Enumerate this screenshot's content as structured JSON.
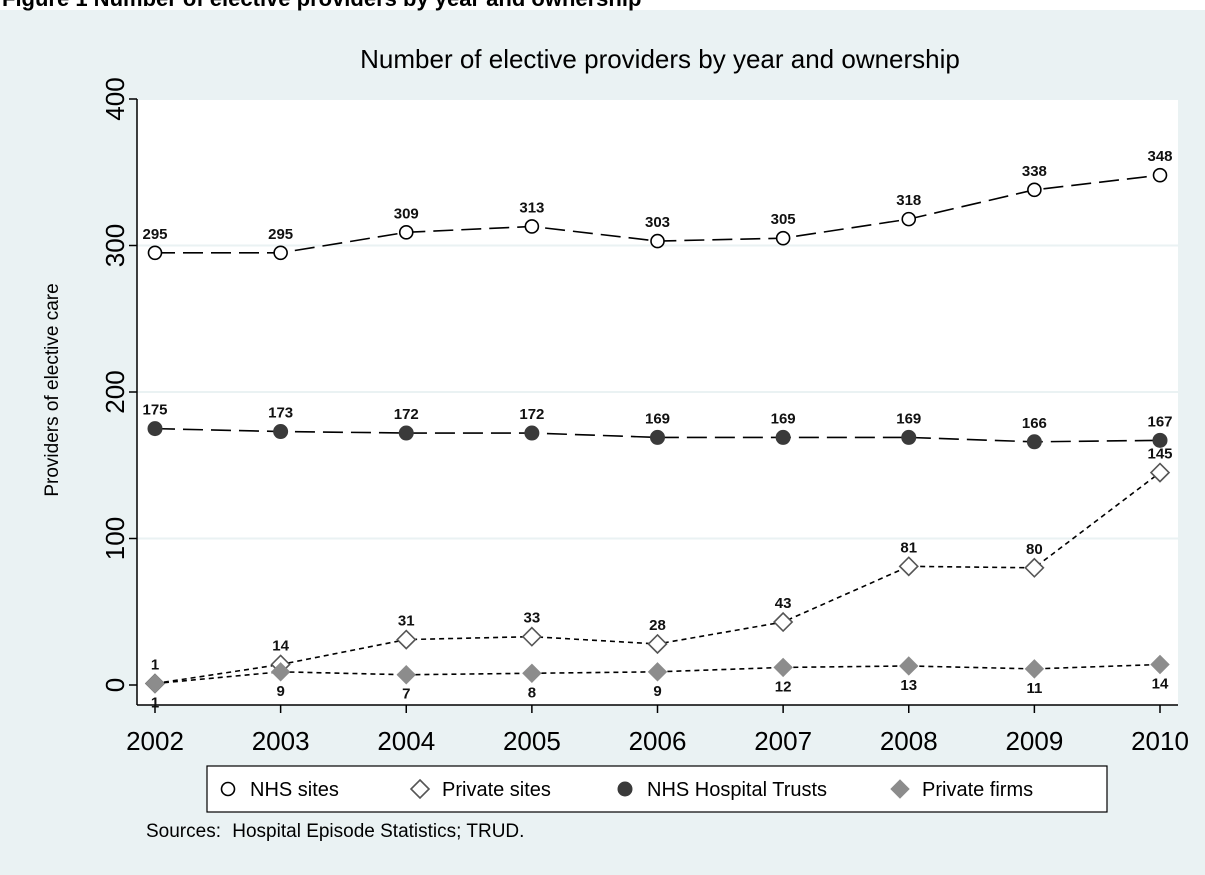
{
  "header_caption": "Figure 1 Number of elective providers by year and ownership",
  "chart_data": {
    "type": "line",
    "title": "Number of elective providers by year and ownership",
    "xlabel": "",
    "ylabel": "Providers of elective care",
    "x": [
      2002,
      2003,
      2004,
      2005,
      2006,
      2007,
      2008,
      2009,
      2010
    ],
    "xticks": [
      "2002",
      "2003",
      "2004",
      "2005",
      "2006",
      "2007",
      "2008",
      "2009",
      "2010"
    ],
    "yticks": [
      "0",
      "100",
      "200",
      "300",
      "400"
    ],
    "ylim": [
      0,
      400
    ],
    "grid": true,
    "legend_position": "bottom",
    "series": [
      {
        "name": "NHS sites",
        "values": [
          295,
          295,
          309,
          313,
          303,
          305,
          318,
          338,
          348
        ],
        "marker": "hollow-circle",
        "line": "long-dash",
        "color": "#000000",
        "label_position": "above"
      },
      {
        "name": "Private sites",
        "values": [
          1,
          14,
          31,
          33,
          28,
          43,
          81,
          80,
          145
        ],
        "marker": "hollow-diamond",
        "line": "short-dash",
        "color": "#000000",
        "label_position": "above"
      },
      {
        "name": "NHS Hospital Trusts",
        "values": [
          175,
          173,
          172,
          172,
          169,
          169,
          169,
          166,
          167
        ],
        "marker": "filled-circle",
        "line": "long-dash",
        "color": "#3a3a3a",
        "label_position": "above"
      },
      {
        "name": "Private firms",
        "values": [
          1,
          9,
          7,
          8,
          9,
          12,
          13,
          11,
          14
        ],
        "marker": "filled-diamond",
        "line": "short-dash",
        "color": "#8c8c8c",
        "label_position": "below"
      }
    ],
    "notes": {
      "label": "Sources:",
      "text": "Hospital Episode Statistics; TRUD."
    }
  }
}
